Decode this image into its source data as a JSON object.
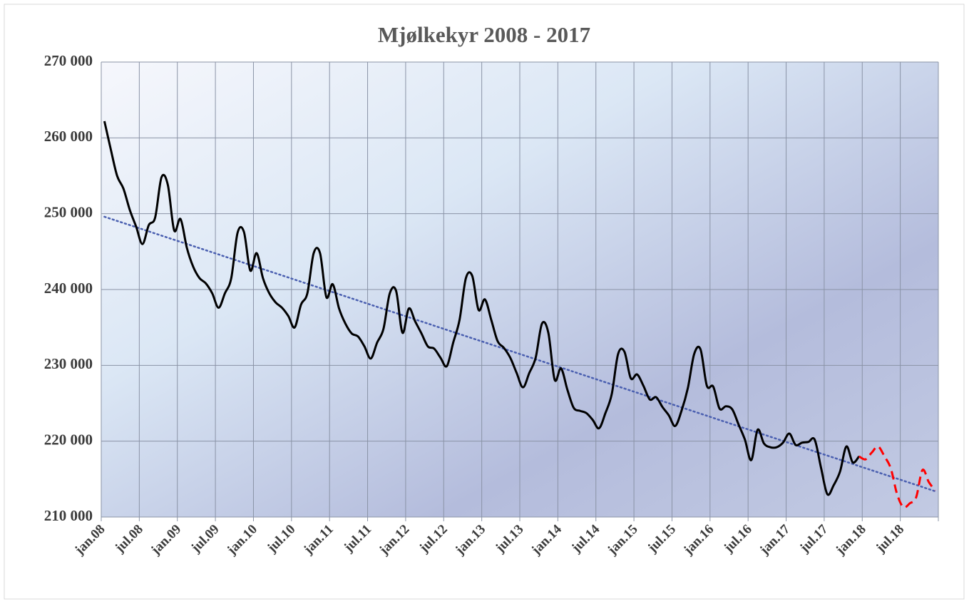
{
  "chart_data": {
    "type": "line",
    "title": "Mjølkekyr 2008 - 2017",
    "categories": [
      "jan.08",
      null,
      null,
      null,
      null,
      null,
      "jul.08",
      null,
      null,
      null,
      null,
      null,
      "jan.09",
      null,
      null,
      null,
      null,
      null,
      "jul.09",
      null,
      null,
      null,
      null,
      null,
      "jan.10",
      null,
      null,
      null,
      null,
      null,
      "jul.10",
      null,
      null,
      null,
      null,
      null,
      "jan.11",
      null,
      null,
      null,
      null,
      null,
      "jul.11",
      null,
      null,
      null,
      null,
      null,
      "jan.12",
      null,
      null,
      null,
      null,
      null,
      "jul.12",
      null,
      null,
      null,
      null,
      null,
      "jan.13",
      null,
      null,
      null,
      null,
      null,
      "jul.13",
      null,
      null,
      null,
      null,
      null,
      "jan.14",
      null,
      null,
      null,
      null,
      null,
      "jul.14",
      null,
      null,
      null,
      null,
      null,
      "jan.15",
      null,
      null,
      null,
      null,
      null,
      "jul.15",
      null,
      null,
      null,
      null,
      null,
      "jan.16",
      null,
      null,
      null,
      null,
      null,
      "jul.16",
      null,
      null,
      null,
      null,
      null,
      "jan.17",
      null,
      null,
      null,
      null,
      null,
      "jul.17",
      null,
      null,
      null,
      null,
      null,
      "jan.18",
      null,
      null,
      null,
      null,
      null,
      "jul.18",
      null,
      null,
      null,
      null,
      null
    ],
    "series": [
      {
        "color": "#000000",
        "dashed": false,
        "values": [
          262200,
          258500,
          255000,
          253300,
          250500,
          248300,
          246000,
          248500,
          249500,
          254800,
          253800,
          247800,
          249300,
          245500,
          243000,
          241500,
          240800,
          239500,
          237600,
          239500,
          241500,
          247500,
          247600,
          242500,
          244800,
          241500,
          239500,
          238300,
          237600,
          236500,
          235000,
          238000,
          239500,
          244800,
          244800,
          239000,
          240700,
          237500,
          235500,
          234200,
          233800,
          232500,
          230900,
          233000,
          234800,
          239500,
          239800,
          234300,
          237500,
          235800,
          234200,
          232500,
          232200,
          231000,
          229900,
          233000,
          236000,
          241500,
          241800,
          237300,
          238700,
          236000,
          233200,
          232300,
          231000,
          229000,
          227100,
          229000,
          231000,
          235500,
          234300,
          228100,
          229600,
          226800,
          224400,
          224000,
          223700,
          222800,
          221700,
          223700,
          226200,
          231500,
          231800,
          228300,
          228800,
          227300,
          225500,
          225800,
          224500,
          223400,
          222000,
          224000,
          227000,
          231500,
          232100,
          227300,
          227200,
          224300,
          224600,
          224200,
          222200,
          220200,
          217500,
          221500,
          219700,
          219200,
          219200,
          219800,
          221000,
          219500,
          219800,
          219900,
          220200,
          216500,
          213000,
          214200,
          216000,
          219300,
          217200,
          218000,
          null,
          null,
          null,
          null,
          null,
          null,
          null,
          null,
          null,
          null,
          null,
          null
        ]
      },
      {
        "color": "#ff0000",
        "dashed": true,
        "values": [
          null,
          null,
          null,
          null,
          null,
          null,
          null,
          null,
          null,
          null,
          null,
          null,
          null,
          null,
          null,
          null,
          null,
          null,
          null,
          null,
          null,
          null,
          null,
          null,
          null,
          null,
          null,
          null,
          null,
          null,
          null,
          null,
          null,
          null,
          null,
          null,
          null,
          null,
          null,
          null,
          null,
          null,
          null,
          null,
          null,
          null,
          null,
          null,
          null,
          null,
          null,
          null,
          null,
          null,
          null,
          null,
          null,
          null,
          null,
          null,
          null,
          null,
          null,
          null,
          null,
          null,
          null,
          null,
          null,
          null,
          null,
          null,
          null,
          null,
          null,
          null,
          null,
          null,
          null,
          null,
          null,
          null,
          null,
          null,
          null,
          null,
          null,
          null,
          null,
          null,
          null,
          null,
          null,
          null,
          null,
          null,
          null,
          null,
          null,
          null,
          null,
          null,
          null,
          null,
          null,
          null,
          null,
          null,
          null,
          null,
          null,
          null,
          null,
          null,
          null,
          null,
          null,
          null,
          null,
          218000,
          217600,
          218500,
          219300,
          218000,
          216400,
          213000,
          211300,
          211800,
          212600,
          216200,
          214600,
          213500
        ]
      }
    ],
    "trendline": {
      "color": "#4a5fb0",
      "from": 249600,
      "to": 213400
    },
    "ylim": [
      210000,
      270000
    ],
    "yticks": [
      {
        "value": 210000,
        "label": "210 000"
      },
      {
        "value": 220000,
        "label": "220 000"
      },
      {
        "value": 230000,
        "label": "230 000"
      },
      {
        "value": 240000,
        "label": "240 000"
      },
      {
        "value": 250000,
        "label": "250 000"
      },
      {
        "value": 260000,
        "label": "260 000"
      },
      {
        "value": 270000,
        "label": "270 000"
      }
    ],
    "grid": true
  }
}
